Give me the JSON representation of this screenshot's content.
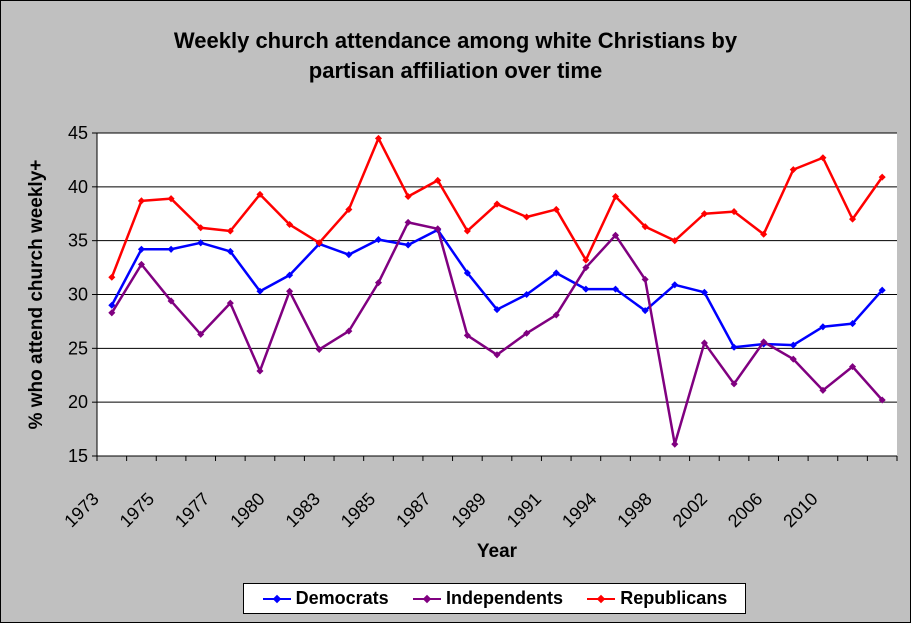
{
  "chart_data": {
    "type": "line",
    "title_line1": "Weekly church attendance among white Christians by",
    "title_line2": "partisan affiliation over time",
    "xlabel": "Year",
    "ylabel": "% who attend church weekly+",
    "ylim": [
      15,
      45
    ],
    "yticks": [
      15,
      20,
      25,
      30,
      35,
      40,
      45
    ],
    "xtick_labels": [
      "1973",
      "1975",
      "1977",
      "1980",
      "1983",
      "1985",
      "1987",
      "1989",
      "1991",
      "1994",
      "1998",
      "2002",
      "2006",
      "2010"
    ],
    "grid": "horizontal",
    "legend_position": "bottom",
    "series": [
      {
        "name": "Democrats",
        "color": "#0000ff",
        "values": [
          29.0,
          34.2,
          34.2,
          34.8,
          34.0,
          30.3,
          31.8,
          34.7,
          33.7,
          35.1,
          34.6,
          36.0,
          32.0,
          28.6,
          30.0,
          32.0,
          30.5,
          30.5,
          28.5,
          30.9,
          30.2,
          25.1,
          25.4,
          25.3,
          27.0,
          27.3,
          30.4
        ]
      },
      {
        "name": "Independents",
        "color": "#800080",
        "values": [
          28.3,
          32.8,
          29.4,
          26.3,
          29.2,
          22.9,
          30.3,
          24.9,
          26.6,
          31.1,
          36.7,
          36.1,
          26.2,
          24.4,
          26.4,
          28.1,
          32.5,
          35.5,
          31.4,
          16.1,
          25.5,
          21.7,
          25.6,
          24.0,
          21.1,
          23.3,
          20.2
        ]
      },
      {
        "name": "Republicans",
        "color": "#ff0000",
        "values": [
          31.6,
          38.7,
          38.9,
          36.2,
          35.9,
          39.3,
          36.5,
          34.8,
          37.9,
          44.5,
          39.1,
          40.6,
          35.9,
          38.4,
          37.2,
          37.9,
          33.2,
          39.1,
          36.3,
          35.0,
          37.5,
          37.7,
          35.6,
          41.6,
          42.7,
          37.0,
          40.9
        ]
      }
    ]
  }
}
